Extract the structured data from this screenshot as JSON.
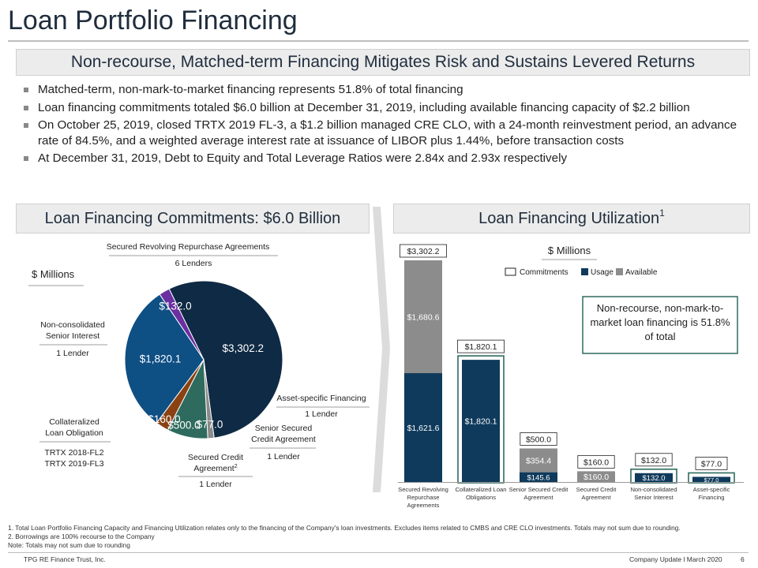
{
  "title": "Loan Portfolio Financing",
  "subtitle": "Non-recourse, Matched-term Financing Mitigates Risk and Sustains Levered Returns",
  "bullets": [
    "Matched-term, non-mark-to-market financing represents 51.8% of total financing",
    "Loan financing commitments totaled $6.0 billion at December 31, 2019, including available financing capacity of $2.2 billion",
    "On October 25, 2019, closed TRTX 2019 FL-3, a $1.2 billion managed CRE CLO, with a 24-month reinvestment period, an advance rate of 84.5%, and a weighted average interest rate at issuance of LIBOR plus 1.44%, before transaction costs",
    "At December 31, 2019, Debt to Equity and Total Leverage Ratios were 2.84x and 2.93x respectively"
  ],
  "left_panel": {
    "header": "Loan Financing Commitments: $6.0 Billion",
    "units": "$ Millions"
  },
  "right_panel": {
    "header": "Loan Financing Utilization",
    "header_sup": "1",
    "units": "$ Millions",
    "callout": "Non-recourse, non-mark-to-market loan financing is 51.8% of total"
  },
  "chart_data": [
    {
      "type": "pie",
      "units": "$ Millions",
      "slices": [
        {
          "label": "$3,302.2",
          "value": 3302.2,
          "color": "#0f2a44",
          "category": "Secured Revolving Repurchase Agreements",
          "lenders": "6 Lenders"
        },
        {
          "label": "$77.0",
          "value": 77.0,
          "color": "#8a8a8a",
          "category": "Asset-specific Financing",
          "lenders": "1 Lender"
        },
        {
          "label": "$500.0",
          "value": 500.0,
          "color": "#2e6b5e",
          "category": "Senior Secured Credit Agreement",
          "lenders": "1 Lender"
        },
        {
          "label": "$160.0",
          "value": 160.0,
          "color": "#8a4212",
          "category": "Secured Credit Agreement",
          "category_sup": "2",
          "lenders": "1 Lender"
        },
        {
          "label": "$1,820.1",
          "value": 1820.1,
          "color": "#0e4f84",
          "category": "Collateralized Loan Obligation",
          "lenders": "TRTX 2018-FL2\nTRTX 2019-FL3"
        },
        {
          "label": "$132.0",
          "value": 132.0,
          "color": "#6a2fa0",
          "category": "Non-consolidated Senior Interest",
          "lenders": "1 Lender"
        }
      ]
    },
    {
      "type": "bar",
      "stacked": true,
      "units": "$ Millions",
      "legend": [
        "Commitments",
        "Usage",
        "Available"
      ],
      "legend_position": "top",
      "categories": [
        "Secured Revolving Repurchase Agreements",
        "Collateralized Loan Obligations",
        "Senior Secured Credit Agreement",
        "Secured Credit Agreement",
        "Non-consolidated Senior Interest",
        "Asset-specific Financing"
      ],
      "category_lines": [
        [
          "Secured Revolving",
          "Repurchase",
          "Agreements"
        ],
        [
          "Collateralized Loan",
          "Obligations"
        ],
        [
          "Senior Secured Credit",
          "Agreement"
        ],
        [
          "Secured Credit",
          "Agreement"
        ],
        [
          "Non-consolidated",
          "Senior Interest"
        ],
        [
          "Asset-specific",
          "Financing"
        ]
      ],
      "series": [
        {
          "name": "Usage",
          "color": "#0f3a5c",
          "values": [
            1621.6,
            1820.1,
            145.6,
            0,
            132.0,
            77.0
          ],
          "labels": [
            "$1,621.6",
            "$1,820.1",
            "$145.6",
            "",
            "$132.0",
            "$77.0"
          ]
        },
        {
          "name": "Available",
          "color": "#8c8c8c",
          "values": [
            1680.6,
            0,
            354.4,
            160.0,
            0,
            0
          ],
          "labels": [
            "$1,680.6",
            "",
            "$354.4",
            "$160.0",
            "",
            ""
          ]
        }
      ],
      "commitments": [
        3302.2,
        1820.1,
        500.0,
        160.0,
        132.0,
        77.0
      ],
      "commitment_labels": [
        "$3,302.2",
        "$1,820.1",
        "$500.0",
        "$160.0",
        "$132.0",
        "$77.0"
      ],
      "highlighted": [
        false,
        true,
        false,
        false,
        true,
        true
      ],
      "highlight_color": "#2e6b5e"
    }
  ],
  "footnotes": [
    "1. Total Loan Portfolio Financing Capacity and Financing Utilization relates only to the financing of the Company's loan investments. Excludes items related to CMBS and CRE CLO investments. Totals may not sum due to rounding.",
    "2. Borrowings are 100% recourse to the Company",
    "Note: Totals may not sum due to rounding"
  ],
  "footer": {
    "company": "TPG RE Finance Trust, Inc.",
    "doc": "Company Update l March 2020",
    "page": "6"
  }
}
